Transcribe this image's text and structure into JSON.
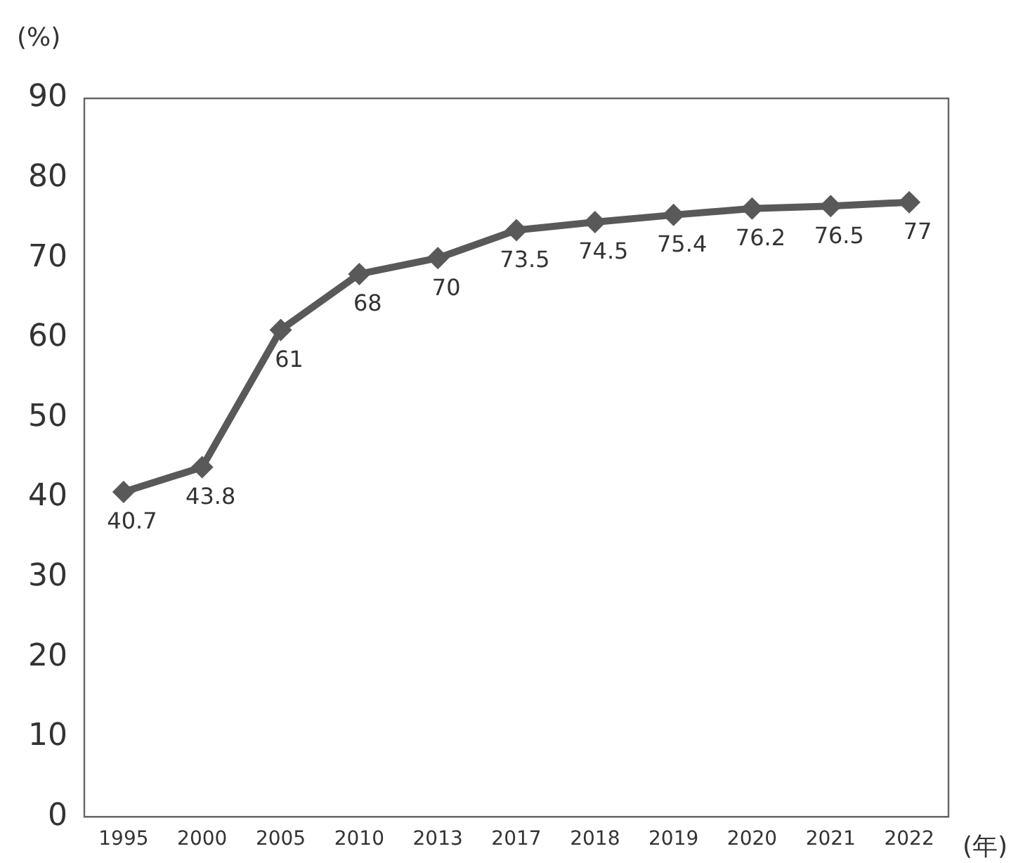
{
  "chart_data": {
    "type": "line",
    "ylabel": "(%)",
    "xlabel": "(年)",
    "categories": [
      "1995",
      "2000",
      "2005",
      "2010",
      "2013",
      "2017",
      "2018",
      "2019",
      "2020",
      "2021",
      "2022"
    ],
    "series": [
      {
        "color": "#595959",
        "values": [
          40.7,
          43.8,
          61,
          68,
          70,
          73.5,
          74.5,
          75.4,
          76.2,
          76.5,
          77
        ]
      }
    ],
    "ylim": [
      0,
      90
    ],
    "yticks": [
      0,
      10,
      20,
      30,
      40,
      50,
      60,
      70,
      80,
      90
    ],
    "grid": false,
    "legend": false,
    "marker": "diamond",
    "line_style": "solid",
    "data_labels": true
  }
}
